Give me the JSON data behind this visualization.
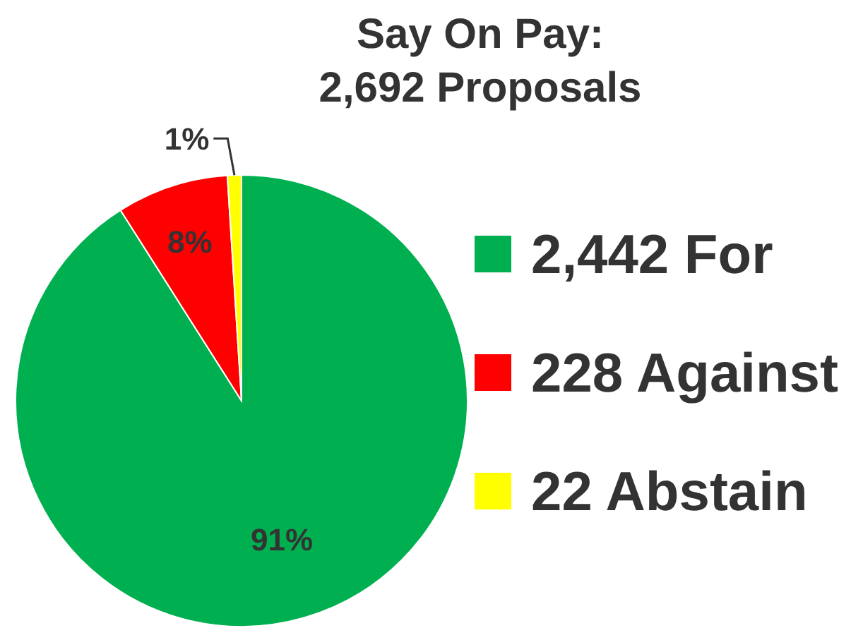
{
  "chart_data": {
    "type": "pie",
    "title": "Say On Pay:\n2,692 Proposals",
    "categories": [
      "2,442 For",
      "228 Against",
      "22 Abstain"
    ],
    "values": [
      91,
      8,
      1
    ],
    "colors": [
      "#00b050",
      "#ff0000",
      "#ffff00"
    ],
    "value_labels": [
      "91%",
      "8%",
      "1%"
    ],
    "legend": "right"
  }
}
